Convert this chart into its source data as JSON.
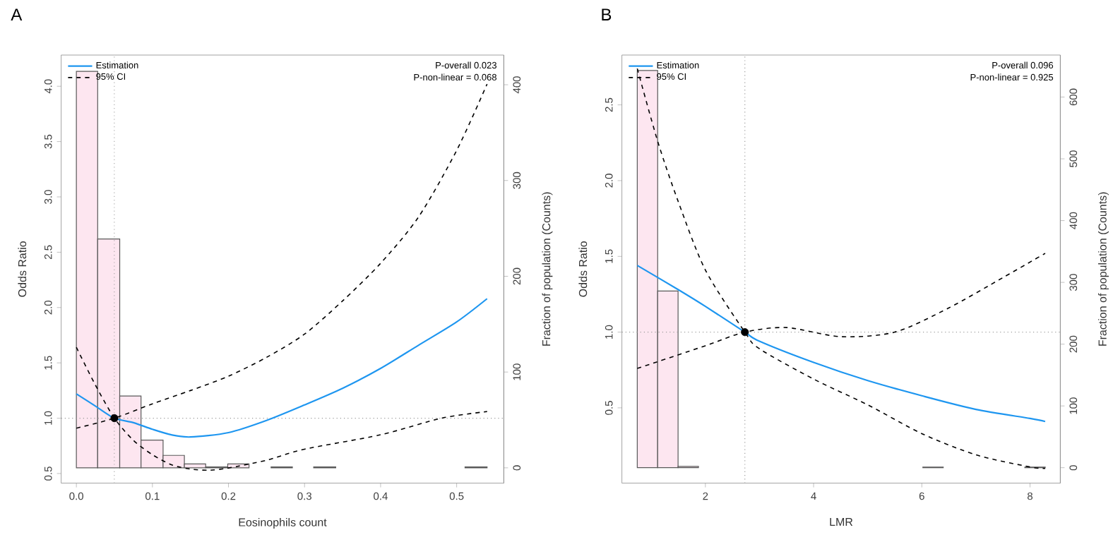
{
  "chart_data": [
    {
      "type": "line",
      "title": "A",
      "xlabel": "Eosinophils count",
      "ylabel": "Odds Ratio",
      "y2label": "Fraction of population (Counts)",
      "legend": "top left",
      "annotations": [
        "P-overall 0.023",
        "P-non-linear = 0.068"
      ],
      "xlim": [
        -0.02,
        0.562
      ],
      "ylim": [
        0.413,
        4.282
      ],
      "y2lim": [
        -16,
        431
      ],
      "xticks": [
        {
          "value": 0,
          "label": "0.0"
        },
        0.1,
        0.2,
        0.3,
        0.4,
        0.5
      ],
      "yticks": [
        0.5,
        {
          "value": 1,
          "label": "1.0"
        },
        1.5,
        {
          "value": 2,
          "label": "2.0"
        },
        2.5,
        {
          "value": 3,
          "label": "3.0"
        },
        3.5,
        {
          "value": 4,
          "label": "4.0"
        }
      ],
      "y2ticks": [
        0,
        100,
        200,
        300,
        400
      ],
      "ref_lines": [
        {
          "axis": "y",
          "value": 1,
          "color": "#9a9a9a",
          "line_style": "dotted"
        },
        {
          "axis": "x",
          "value": 0.05,
          "color": "#9a9a9a",
          "line_style": "dotted"
        }
      ],
      "series": [
        {
          "type": "histogram",
          "axis": "y2",
          "color": "#fde6f0",
          "bins": [
            0,
            0.028,
            0.057,
            0.085,
            0.114,
            0.142,
            0.17,
            0.199,
            0.227,
            0.256,
            0.284,
            0.312,
            0.341,
            0.511,
            0.54
          ],
          "values": [
            414,
            239,
            75,
            29,
            13,
            4,
            1,
            4,
            0,
            1,
            0,
            1,
            0,
            1
          ]
        },
        {
          "name": "Estimation",
          "color": "#1e96f0",
          "line_style": "solid",
          "x": [
            0,
            0.025,
            0.05,
            0.075,
            0.1,
            0.125,
            0.15,
            0.2,
            0.25,
            0.3,
            0.35,
            0.4,
            0.45,
            0.5,
            0.54
          ],
          "values": [
            1.22,
            1.11,
            1.0,
            0.96,
            0.9,
            0.85,
            0.83,
            0.87,
            0.98,
            1.12,
            1.27,
            1.45,
            1.66,
            1.87,
            2.08
          ]
        },
        {
          "name": "95% CI",
          "color": "#000000",
          "line_style": "dashed",
          "x": [
            0,
            0.05,
            0.1,
            0.15,
            0.2,
            0.25,
            0.3,
            0.35,
            0.4,
            0.45,
            0.5,
            0.54
          ],
          "values": [
            0.91,
            1.0,
            1.13,
            1.25,
            1.38,
            1.55,
            1.76,
            2.06,
            2.4,
            2.82,
            3.42,
            4.02
          ]
        },
        {
          "color": "#000000",
          "line_style": "dashed",
          "x": [
            0,
            0.025,
            0.05,
            0.075,
            0.1,
            0.125,
            0.15,
            0.175,
            0.2,
            0.25,
            0.3,
            0.4,
            0.48,
            0.54
          ],
          "values": [
            1.64,
            1.3,
            1.0,
            0.8,
            0.67,
            0.58,
            0.54,
            0.53,
            0.55,
            0.62,
            0.72,
            0.85,
            1.0,
            1.06
          ]
        },
        {
          "type": "scatter",
          "color": "#000000",
          "marker": "circle",
          "x": [
            0.05
          ],
          "values": [
            1
          ]
        }
      ]
    },
    {
      "type": "line",
      "title": "B",
      "xlabel": "LMR",
      "ylabel": "Odds Ratio",
      "y2label": "Fraction of population (Counts)",
      "legend": "top left",
      "annotations": [
        "P-overall 0.096",
        "P-non-linear = 0.925"
      ],
      "xlim": [
        0.457,
        8.56
      ],
      "ylim": [
        0.003,
        2.829
      ],
      "y2lim": [
        -25,
        668
      ],
      "xticks": [
        2,
        4,
        6,
        8
      ],
      "yticks": [
        0.5,
        {
          "value": 1,
          "label": "1.0"
        },
        1.5,
        {
          "value": 2,
          "label": "2.0"
        },
        2.5
      ],
      "y2ticks": [
        0,
        100,
        200,
        300,
        400,
        500,
        600
      ],
      "ref_lines": [
        {
          "axis": "y",
          "value": 1,
          "color": "#9a9a9a",
          "line_style": "dotted"
        },
        {
          "axis": "x",
          "value": 2.73,
          "color": "#9a9a9a",
          "line_style": "dotted"
        }
      ],
      "series": [
        {
          "type": "histogram",
          "axis": "y2",
          "color": "#fde6f0",
          "bins": [
            0.741,
            1.118,
            1.495,
            1.872,
            2.249,
            2.626,
            3.003,
            3.38,
            3.757,
            4.134,
            4.511,
            4.888,
            5.265,
            5.642,
            6.019,
            6.396,
            6.773,
            7.15,
            7.527,
            7.904,
            8.281
          ],
          "values": [
            643,
            286,
            2,
            0,
            0,
            0,
            0,
            0,
            0,
            0,
            0,
            0,
            0,
            0,
            1,
            0,
            0,
            0,
            0,
            1
          ]
        },
        {
          "name": "Estimation",
          "color": "#1e96f0",
          "line_style": "solid",
          "x": [
            0.741,
            1.5,
            2,
            2.73,
            3,
            4,
            5,
            6,
            7,
            8,
            8.28
          ],
          "values": [
            1.44,
            1.28,
            1.17,
            1.0,
            0.94,
            0.8,
            0.68,
            0.58,
            0.49,
            0.43,
            0.41
          ]
        },
        {
          "name": "95% CI",
          "color": "#000000",
          "line_style": "dashed",
          "x": [
            0.741,
            2,
            2.73,
            3.5,
            4.5,
            5.5,
            6.5,
            7.5,
            8.28
          ],
          "values": [
            0.76,
            0.91,
            1.0,
            1.03,
            0.97,
            1.0,
            1.16,
            1.36,
            1.52
          ]
        },
        {
          "color": "#000000",
          "line_style": "dashed",
          "x": [
            0.741,
            1.118,
            1.5,
            2,
            2.73,
            3,
            4,
            5,
            6,
            7,
            8,
            8.28
          ],
          "values": [
            2.74,
            2.26,
            1.86,
            1.41,
            1.0,
            0.89,
            0.69,
            0.52,
            0.33,
            0.19,
            0.11,
            0.1
          ]
        },
        {
          "type": "scatter",
          "color": "#000000",
          "marker": "circle",
          "x": [
            2.73
          ],
          "values": [
            1
          ]
        }
      ]
    }
  ]
}
